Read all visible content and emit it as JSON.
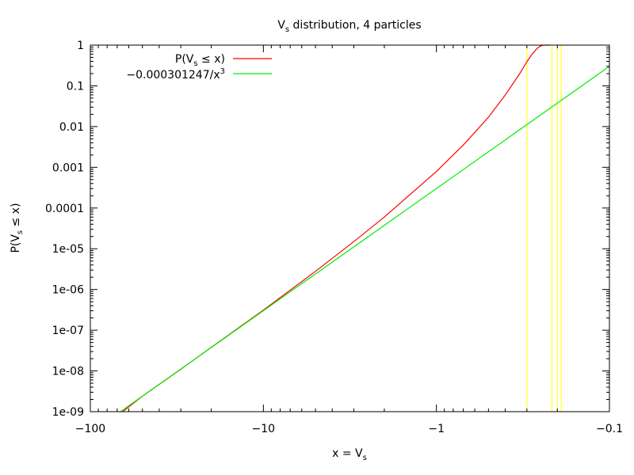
{
  "chart_data": {
    "type": "line",
    "title": {
      "base": "V",
      "sub": "s",
      "rest": " distribution, 4 particles"
    },
    "xlabel": {
      "base": "x = V",
      "sub": "s"
    },
    "ylabel": {
      "pre": "P(V",
      "sub": "s",
      "post": " ≤ x)"
    },
    "x_scale": "log-negative",
    "xlim": [
      -100,
      -0.1
    ],
    "y_scale": "log",
    "ylim": [
      1e-09,
      1
    ],
    "x_ticks": [
      {
        "value": -100,
        "label": "−100"
      },
      {
        "value": -10,
        "label": "−10"
      },
      {
        "value": -1,
        "label": "−1"
      },
      {
        "value": -0.1,
        "label": "−0.1"
      }
    ],
    "y_ticks": [
      {
        "value": 1,
        "label": "1"
      },
      {
        "value": 0.1,
        "label": "0.1"
      },
      {
        "value": 0.01,
        "label": "0.01"
      },
      {
        "value": 0.001,
        "label": "0.001"
      },
      {
        "value": 0.0001,
        "label": "0.0001"
      },
      {
        "value": 1e-05,
        "label": "1e-05"
      },
      {
        "value": 1e-06,
        "label": "1e-06"
      },
      {
        "value": 1e-07,
        "label": "1e-07"
      },
      {
        "value": 1e-08,
        "label": "1e-08"
      },
      {
        "value": 1e-09,
        "label": "1e-09"
      }
    ],
    "legend_position": "top-left",
    "series": [
      {
        "legend": {
          "pre": "P(V",
          "sub": "s",
          "post": " ≤ x)"
        },
        "color": "#ff0000",
        "x": [
          -65,
          -50,
          -30,
          -20,
          -10,
          -5,
          -3,
          -2,
          -1,
          -0.7,
          -0.5,
          -0.4,
          -0.33,
          -0.3,
          -0.28,
          -0.26,
          -0.25,
          -0.24,
          -0.22
        ],
        "y": [
          1e-09,
          2.4e-09,
          1.1e-08,
          3.8e-08,
          3.1e-07,
          2.8e-06,
          1.5e-05,
          6e-05,
          0.00079,
          0.0035,
          0.017,
          0.06,
          0.2,
          0.39,
          0.6,
          0.85,
          0.95,
          1,
          1
        ]
      },
      {
        "legend": {
          "text": "−0.000301247/x",
          "sup": "3"
        },
        "color": "#00ee00",
        "x": [
          -67,
          -0.1
        ],
        "y": [
          1e-09,
          0.301247
        ]
      }
    ],
    "vertical_lines": {
      "color": "#ffff00",
      "x": [
        -0.3,
        -0.215,
        -0.2,
        -0.19
      ]
    }
  }
}
